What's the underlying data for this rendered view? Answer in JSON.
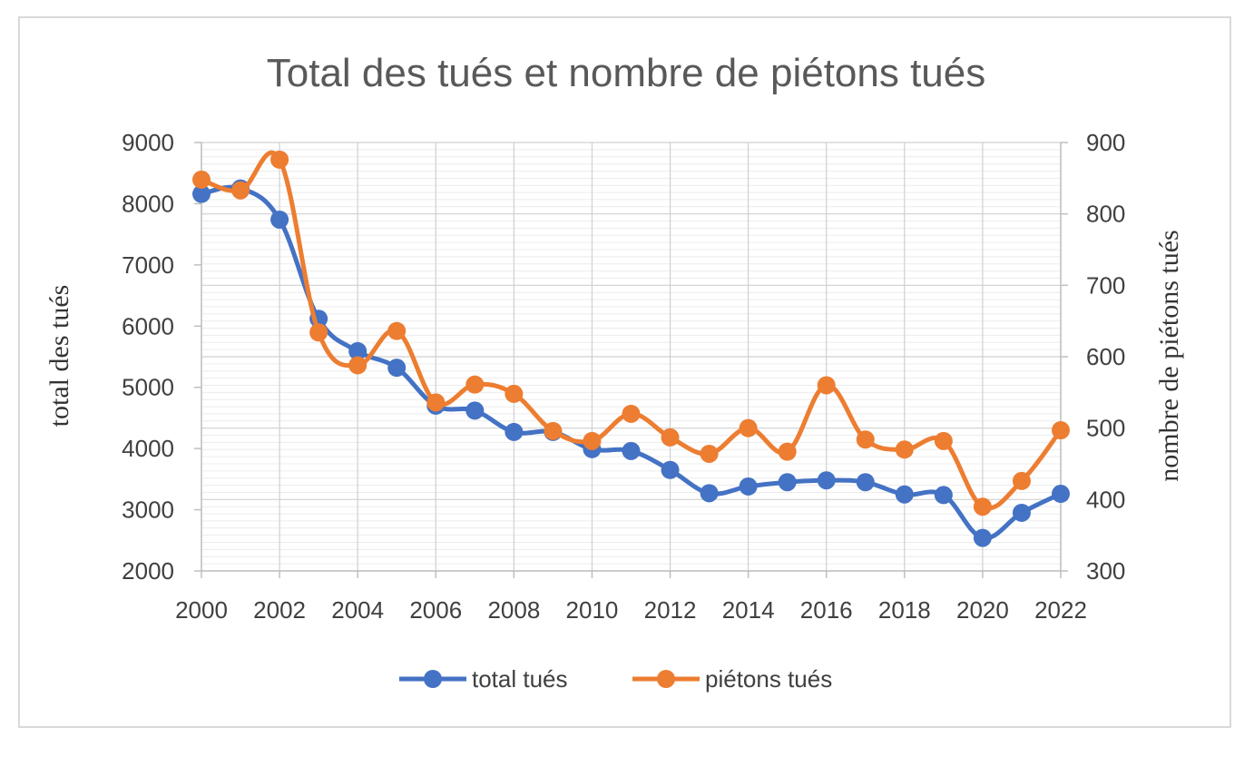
{
  "chart_data": {
    "type": "line",
    "title": "Total des tués et nombre de piétons tués",
    "x": [
      2000,
      2001,
      2002,
      2003,
      2004,
      2005,
      2006,
      2007,
      2008,
      2009,
      2010,
      2011,
      2012,
      2013,
      2014,
      2015,
      2016,
      2017,
      2018,
      2019,
      2020,
      2021,
      2022
    ],
    "x_ticks": [
      "2000",
      "2002",
      "2004",
      "2006",
      "2008",
      "2010",
      "2012",
      "2014",
      "2016",
      "2018",
      "2020",
      "2022"
    ],
    "xlim": [
      2000,
      2022
    ],
    "ylabel_left": "total des tués",
    "ylim_left": [
      2000,
      9000
    ],
    "yticks_left": [
      "2000",
      "3000",
      "4000",
      "5000",
      "6000",
      "7000",
      "8000",
      "9000"
    ],
    "ylabel_right": "nombre de piétons tués",
    "ylim_right": [
      300,
      900
    ],
    "yticks_right": [
      "300",
      "400",
      "500",
      "600",
      "700",
      "800",
      "900"
    ],
    "grid": true,
    "legend": "bottom",
    "series": [
      {
        "name": "total tués",
        "axis": "left",
        "color": "#4472C4",
        "values": [
          8160,
          8250,
          7740,
          6120,
          5590,
          5320,
          4700,
          4620,
          4270,
          4270,
          3990,
          3960,
          3650,
          3270,
          3380,
          3450,
          3480,
          3450,
          3250,
          3240,
          2540,
          2950,
          3260
        ]
      },
      {
        "name": "piétons tués",
        "axis": "right",
        "color": "#ED7D31",
        "values": [
          848,
          833,
          876,
          634,
          588,
          636,
          536,
          561,
          548,
          496,
          482,
          520,
          487,
          464,
          500,
          467,
          560,
          484,
          470,
          482,
          390,
          426,
          497
        ]
      }
    ]
  }
}
